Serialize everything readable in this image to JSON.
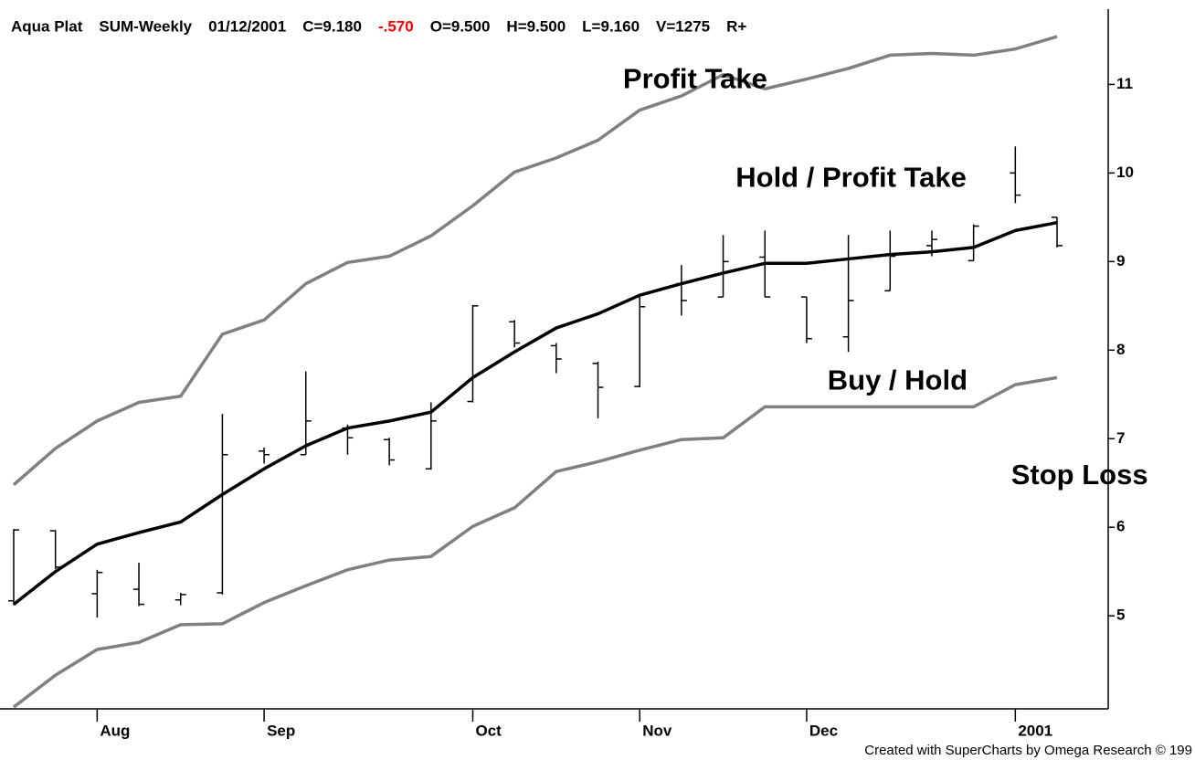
{
  "chart_data": {
    "type": "ohlc",
    "header": [
      {
        "text": "Aqua Plat",
        "color": "#000000"
      },
      {
        "text": "SUM-Weekly",
        "color": "#000000"
      },
      {
        "text": "01/12/2001",
        "color": "#000000"
      },
      {
        "text": "C=9.180",
        "color": "#000000"
      },
      {
        "text": "-.570",
        "color": "#ff0000"
      },
      {
        "text": "O=9.500",
        "color": "#000000"
      },
      {
        "text": "H=9.500",
        "color": "#000000"
      },
      {
        "text": "L=9.160",
        "color": "#000000"
      },
      {
        "text": "V=1275",
        "color": "#000000"
      },
      {
        "text": "R+",
        "color": "#000000"
      }
    ],
    "footer": "Created with SuperCharts by Omega Research © 199",
    "categories": [
      null,
      null,
      "Aug",
      null,
      null,
      null,
      "Sep",
      null,
      null,
      null,
      null,
      "Oct",
      null,
      null,
      null,
      "Nov",
      null,
      null,
      null,
      "Dec",
      null,
      null,
      null,
      null,
      "2001",
      null
    ],
    "open": [
      5.17,
      5.96,
      5.25,
      5.3,
      5.18,
      5.26,
      6.86,
      6.82,
      7.12,
      6.99,
      6.66,
      7.42,
      8.32,
      8.05,
      7.85,
      7.59,
      8.75,
      8.6,
      9.05,
      8.6,
      8.15,
      8.67,
      9.18,
      9.01,
      10.0,
      9.5
    ],
    "high": [
      5.98,
      5.97,
      5.52,
      5.6,
      5.26,
      7.28,
      6.9,
      7.76,
      7.16,
      7.01,
      7.41,
      8.51,
      8.34,
      8.08,
      7.87,
      8.6,
      8.96,
      9.3,
      9.35,
      8.6,
      9.3,
      9.35,
      9.35,
      9.42,
      10.3,
      9.5
    ],
    "low": [
      5.12,
      5.53,
      4.98,
      5.11,
      5.12,
      5.24,
      6.72,
      6.82,
      6.82,
      6.7,
      6.65,
      7.41,
      8.03,
      7.74,
      7.23,
      7.58,
      8.39,
      8.6,
      8.6,
      8.08,
      7.98,
      8.67,
      9.06,
      9.01,
      9.66,
      9.16
    ],
    "close": [
      5.97,
      5.55,
      5.49,
      5.13,
      5.24,
      6.82,
      6.82,
      7.2,
      7.01,
      6.76,
      7.2,
      8.5,
      8.08,
      7.9,
      7.58,
      8.49,
      8.56,
      9.0,
      8.6,
      8.13,
      8.56,
      9.06,
      9.25,
      9.4,
      9.75,
      9.18
    ],
    "bar_color": "#000000",
    "lines": [
      {
        "color": "#000000",
        "values": [
          5.13,
          5.5,
          5.81,
          5.94,
          6.06,
          6.37,
          6.66,
          6.92,
          7.12,
          7.2,
          7.3,
          7.69,
          7.98,
          8.25,
          8.41,
          8.62,
          8.75,
          8.87,
          8.98,
          8.98,
          9.03,
          9.08,
          9.11,
          9.16,
          9.35,
          9.44
        ]
      },
      {
        "color": "#808080",
        "values": [
          6.48,
          6.89,
          7.2,
          7.41,
          7.48,
          8.18,
          8.34,
          8.75,
          8.99,
          9.06,
          9.29,
          9.63,
          10.01,
          10.17,
          10.37,
          10.71,
          10.87,
          11.11,
          10.95,
          11.06,
          11.18,
          11.33,
          11.35,
          11.33,
          11.4,
          11.54
        ]
      },
      {
        "color": "#808080",
        "values": [
          3.97,
          4.33,
          4.62,
          4.7,
          4.9,
          4.91,
          5.15,
          5.34,
          5.52,
          5.63,
          5.67,
          6.01,
          6.22,
          6.63,
          6.74,
          6.87,
          6.99,
          7.01,
          7.36,
          7.36,
          7.36,
          7.36,
          7.36,
          7.36,
          7.61,
          7.69
        ]
      }
    ],
    "annotations": [
      {
        "text": "Profit Take",
        "x": 14.6,
        "y": 11.04
      },
      {
        "text": "Hold / Profit Take",
        "x": 17.3,
        "y": 9.93
      },
      {
        "text": "Buy / Hold",
        "x": 19.5,
        "y": 7.64
      },
      {
        "text": "Stop Loss",
        "x": 23.9,
        "y": 6.57
      }
    ],
    "ylim": [
      3.95,
      11.85
    ],
    "yticks": [
      5,
      6,
      7,
      8,
      9,
      10,
      11
    ]
  }
}
